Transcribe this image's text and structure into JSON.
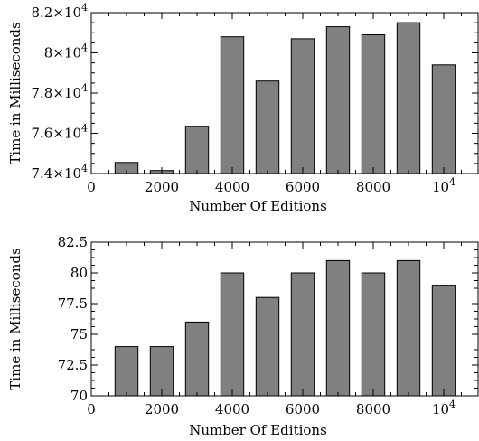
{
  "chart_data": [
    {
      "type": "bar",
      "x": [
        1000,
        2000,
        3000,
        4000,
        5000,
        6000,
        7000,
        8000,
        9000,
        10000
      ],
      "values": [
        74550,
        74150,
        76350,
        80800,
        78600,
        80700,
        81300,
        80900,
        81500,
        79400
      ],
      "xlabel": "Number Of Editions",
      "ylabel": "Time in Milliseconds",
      "xlim": [
        0,
        11000
      ],
      "ylim": [
        74000,
        82000
      ],
      "x_ticks": [
        {
          "value": 0,
          "label": "0"
        },
        {
          "value": 2000,
          "label": "2000"
        },
        {
          "value": 4000,
          "label": "4000"
        },
        {
          "value": 6000,
          "label": "6000"
        },
        {
          "value": 8000,
          "label": "8000"
        },
        {
          "value": 10000,
          "label": "10",
          "exp": "4"
        }
      ],
      "y_ticks": [
        {
          "value": 74000,
          "mant": "7.4×10",
          "exp": "4"
        },
        {
          "value": 76000,
          "mant": "7.6×10",
          "exp": "4"
        },
        {
          "value": 78000,
          "mant": "7.8×10",
          "exp": "4"
        },
        {
          "value": 80000,
          "mant": "8×10",
          "exp": "4"
        },
        {
          "value": 82000,
          "mant": "8.2×10",
          "exp": "4"
        }
      ],
      "bar_color": "#808080",
      "grid": false
    },
    {
      "type": "bar",
      "x": [
        1000,
        2000,
        3000,
        4000,
        5000,
        6000,
        7000,
        8000,
        9000,
        10000
      ],
      "values": [
        74,
        74,
        76,
        80,
        78,
        80,
        81,
        80,
        81,
        79
      ],
      "xlabel": "Number Of Editions",
      "ylabel": "Time in Milliseconds",
      "xlim": [
        0,
        11000
      ],
      "ylim": [
        70,
        82.5
      ],
      "x_ticks": [
        {
          "value": 0,
          "label": "0"
        },
        {
          "value": 2000,
          "label": "2000"
        },
        {
          "value": 4000,
          "label": "4000"
        },
        {
          "value": 6000,
          "label": "6000"
        },
        {
          "value": 8000,
          "label": "8000"
        },
        {
          "value": 10000,
          "label": "10",
          "exp": "4"
        }
      ],
      "y_ticks": [
        {
          "value": 70,
          "mant": "70"
        },
        {
          "value": 72.5,
          "mant": "72.5"
        },
        {
          "value": 75,
          "mant": "75"
        },
        {
          "value": 77.5,
          "mant": "77.5"
        },
        {
          "value": 80,
          "mant": "80"
        },
        {
          "value": 82.5,
          "mant": "82.5"
        }
      ],
      "bar_color": "#808080",
      "grid": false
    }
  ]
}
